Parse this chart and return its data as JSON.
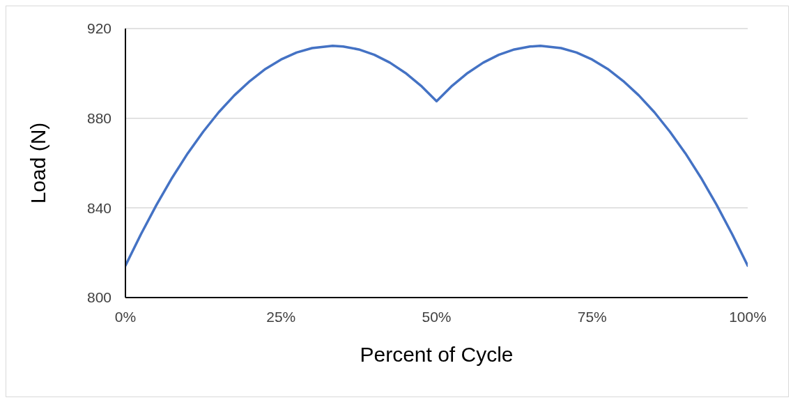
{
  "chart_data": {
    "type": "line",
    "xlabel": "Percent of Cycle",
    "ylabel": "Load (N)",
    "x": [
      0,
      2.5,
      5,
      7.5,
      10,
      12.5,
      15,
      17.5,
      20,
      22.5,
      25,
      27.5,
      30,
      33.3,
      35,
      37.5,
      40,
      42.5,
      45,
      47.5,
      50,
      52.5,
      55,
      57.5,
      60,
      62.5,
      65,
      66.7,
      70,
      72.5,
      75,
      77.5,
      80,
      82.5,
      85,
      87.5,
      90,
      92.5,
      95,
      97.5,
      100
    ],
    "series": [
      {
        "color": "#4472c4",
        "values": [
          814.2,
          828.3,
          841.4,
          853.4,
          864.3,
          874.0,
          882.7,
          890.2,
          896.6,
          902.0,
          906.2,
          909.3,
          911.3,
          912.3,
          912.0,
          910.7,
          908.3,
          904.8,
          900.2,
          894.5,
          887.6,
          894.5,
          900.2,
          904.8,
          908.3,
          910.7,
          912.0,
          912.3,
          911.3,
          909.3,
          906.2,
          902.0,
          896.6,
          890.2,
          882.7,
          874.0,
          864.3,
          853.4,
          841.4,
          828.3,
          814.2
        ]
      }
    ],
    "xlim": [
      0,
      100
    ],
    "xticks": [
      {
        "value": 0,
        "label": "0%"
      },
      {
        "value": 25,
        "label": "25%"
      },
      {
        "value": 50,
        "label": "50%"
      },
      {
        "value": 75,
        "label": "75%"
      },
      {
        "value": 100,
        "label": "100%"
      }
    ],
    "ylim": [
      800,
      920
    ],
    "yticks": [
      800,
      840,
      880,
      920
    ],
    "grid": "y"
  }
}
